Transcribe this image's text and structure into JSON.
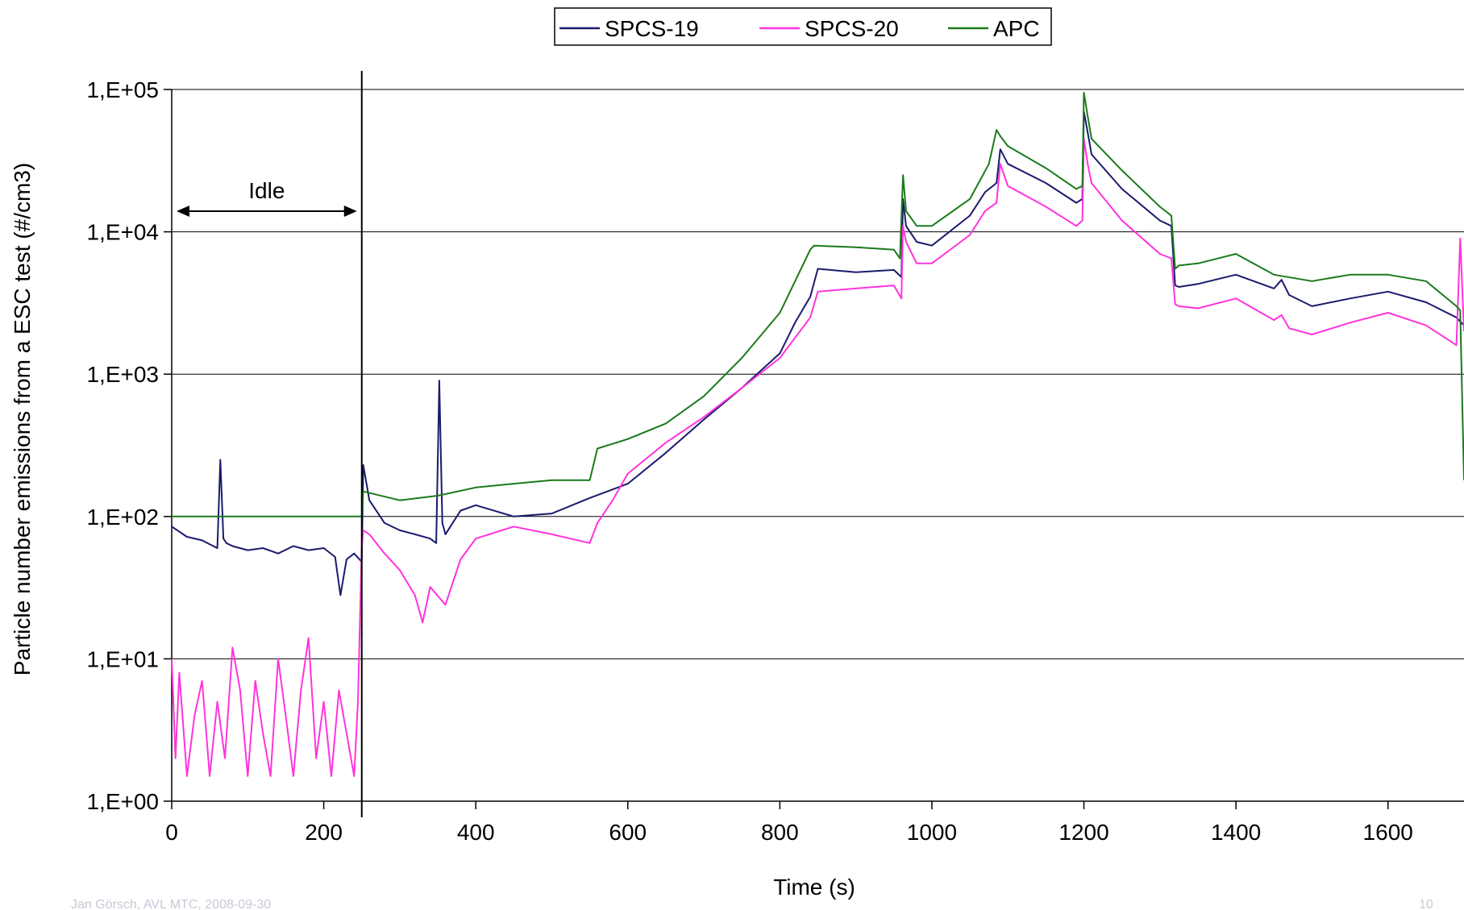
{
  "chart_data": {
    "type": "line",
    "title": "",
    "xlabel": "Time (s)",
    "ylabel": "Particle number emissions from a ESC test (#/cm3)",
    "xlim": [
      0,
      1700
    ],
    "ylim": [
      1,
      100000
    ],
    "y_scale": "log",
    "x_ticks": [
      0,
      200,
      400,
      600,
      800,
      1000,
      1200,
      1400,
      1600
    ],
    "x_tick_labels": [
      "0",
      "200",
      "400",
      "600",
      "800",
      "1000",
      "1200",
      "1400",
      "1600"
    ],
    "y_ticks": [
      1,
      10,
      100,
      1000,
      10000,
      100000
    ],
    "y_tick_labels": [
      "1,E+00",
      "1,E+01",
      "1,E+02",
      "1,E+03",
      "1,E+04",
      "1,E+05"
    ],
    "grid": "horizontal",
    "legend_position": "top-center",
    "annotation": {
      "text": "Idle",
      "x_start": 0,
      "x_end": 250
    },
    "vertical_marker_x": 250,
    "series": [
      {
        "name": "SPCS-19",
        "color": "#1a1a6e",
        "x": [
          0,
          20,
          40,
          60,
          64,
          68,
          72,
          80,
          100,
          120,
          140,
          160,
          180,
          200,
          215,
          222,
          230,
          240,
          250,
          252,
          260,
          280,
          300,
          320,
          340,
          348,
          352,
          356,
          360,
          380,
          400,
          450,
          500,
          550,
          600,
          650,
          700,
          750,
          800,
          820,
          840,
          850,
          900,
          950,
          960,
          962,
          966,
          980,
          1000,
          1050,
          1070,
          1085,
          1090,
          1100,
          1150,
          1190,
          1198,
          1200,
          1205,
          1210,
          1250,
          1300,
          1315,
          1320,
          1325,
          1350,
          1400,
          1450,
          1460,
          1470,
          1500,
          1550,
          1600,
          1650,
          1690,
          1700
        ],
        "values": [
          85,
          72,
          68,
          60,
          250,
          70,
          65,
          62,
          58,
          60,
          55,
          62,
          58,
          60,
          52,
          28,
          50,
          55,
          48,
          230,
          130,
          90,
          80,
          75,
          70,
          65,
          900,
          90,
          75,
          110,
          120,
          100,
          105,
          135,
          170,
          280,
          480,
          800,
          1400,
          2300,
          3500,
          5500,
          5200,
          5400,
          4800,
          17000,
          11000,
          8500,
          8000,
          13000,
          19000,
          22000,
          38000,
          30000,
          22000,
          16000,
          17000,
          70000,
          50000,
          35000,
          20000,
          12000,
          11000,
          4200,
          4100,
          4300,
          5000,
          4000,
          4600,
          3600,
          3000,
          3400,
          3800,
          3200,
          2500,
          2200
        ]
      },
      {
        "name": "SPCS-20",
        "color": "#ff33dd",
        "x": [
          0,
          5,
          10,
          20,
          30,
          40,
          50,
          60,
          70,
          80,
          90,
          100,
          110,
          120,
          130,
          140,
          150,
          160,
          170,
          180,
          190,
          200,
          210,
          220,
          230,
          240,
          245,
          250,
          252,
          260,
          280,
          300,
          320,
          330,
          340,
          360,
          380,
          400,
          450,
          500,
          550,
          560,
          580,
          600,
          650,
          700,
          750,
          800,
          840,
          850,
          900,
          950,
          960,
          962,
          966,
          980,
          1000,
          1050,
          1070,
          1085,
          1090,
          1100,
          1150,
          1190,
          1198,
          1200,
          1205,
          1210,
          1250,
          1300,
          1315,
          1320,
          1325,
          1350,
          1400,
          1450,
          1460,
          1470,
          1500,
          1550,
          1600,
          1650,
          1690,
          1695,
          1700
        ],
        "values": [
          10,
          2,
          8,
          1.5,
          4,
          7,
          1.5,
          5,
          2,
          12,
          6,
          1.5,
          7,
          3,
          1.5,
          10,
          4,
          1.5,
          6,
          14,
          2,
          5,
          1.5,
          6,
          3,
          1.5,
          5,
          60,
          80,
          75,
          55,
          42,
          28,
          18,
          32,
          24,
          50,
          70,
          85,
          75,
          65,
          90,
          130,
          200,
          330,
          500,
          800,
          1300,
          2500,
          3800,
          4000,
          4200,
          3400,
          11000,
          8500,
          6000,
          6000,
          9500,
          14000,
          16000,
          30000,
          21000,
          15000,
          11000,
          12000,
          45000,
          30000,
          22000,
          12000,
          7000,
          6500,
          3100,
          3000,
          2900,
          3400,
          2400,
          2600,
          2100,
          1900,
          2300,
          2700,
          2200,
          1600,
          9000,
          2000
        ]
      },
      {
        "name": "APC",
        "color": "#1a7a1a",
        "x": [
          0,
          250,
          252,
          300,
          350,
          400,
          450,
          500,
          550,
          560,
          600,
          650,
          700,
          750,
          800,
          840,
          845,
          900,
          950,
          958,
          962,
          966,
          980,
          1000,
          1050,
          1075,
          1085,
          1090,
          1100,
          1150,
          1190,
          1198,
          1200,
          1205,
          1210,
          1250,
          1300,
          1315,
          1320,
          1325,
          1350,
          1400,
          1450,
          1500,
          1550,
          1600,
          1650,
          1690,
          1695,
          1700
        ],
        "values": [
          100,
          100,
          150,
          130,
          140,
          160,
          170,
          180,
          180,
          300,
          350,
          450,
          700,
          1300,
          2700,
          7500,
          8000,
          7800,
          7500,
          6500,
          25000,
          14000,
          11000,
          11000,
          17000,
          30000,
          52000,
          47000,
          40000,
          28000,
          20000,
          21000,
          95000,
          65000,
          45000,
          27000,
          15000,
          13000,
          5500,
          5800,
          6000,
          7000,
          5000,
          4500,
          5000,
          5000,
          4500,
          3000,
          2800,
          180
        ]
      }
    ]
  },
  "footer": {
    "left": "Jan Görsch, AVL MTC, 2008-09-30",
    "right": "10"
  }
}
